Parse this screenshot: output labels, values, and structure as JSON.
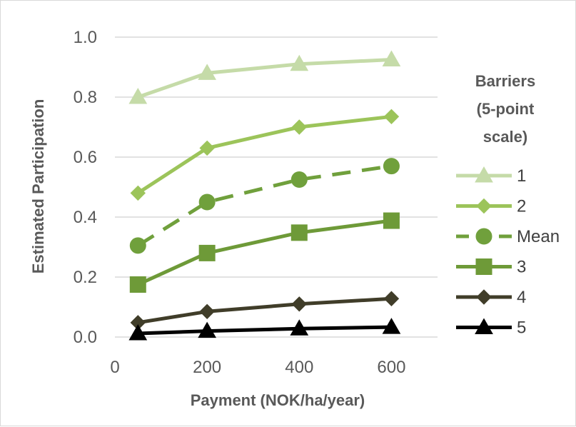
{
  "chart_data": {
    "type": "line",
    "xlabel": "Payment (NOK/ha/year)",
    "ylabel": "Estimated Participation",
    "xlim": [
      0,
      700
    ],
    "ylim": [
      0,
      1.0
    ],
    "x_ticks": [
      0,
      200,
      400,
      600
    ],
    "x_tick_labels": [
      "0",
      "200",
      "400",
      "600"
    ],
    "y_ticks": [
      0,
      0.2,
      0.4,
      0.6,
      0.8,
      1.0
    ],
    "y_tick_labels": [
      "0.0",
      "0.2",
      "0.4",
      "0.6",
      "0.8",
      "1.0"
    ],
    "grid": "horizontal",
    "legend_title": [
      "Barriers",
      "(5-point",
      "scale)"
    ],
    "legend_placement": "right",
    "x": [
      50,
      200,
      400,
      600
    ],
    "series": [
      {
        "name": "1",
        "values": [
          0.8,
          0.88,
          0.91,
          0.925
        ],
        "color": "#c5dba8",
        "marker": "triangle",
        "dash": false
      },
      {
        "name": "2",
        "values": [
          0.48,
          0.63,
          0.7,
          0.735
        ],
        "color": "#9cc45a",
        "marker": "diamond",
        "dash": false
      },
      {
        "name": "Mean",
        "values": [
          0.305,
          0.45,
          0.525,
          0.57
        ],
        "color": "#70a03c",
        "marker": "circle",
        "dash": true
      },
      {
        "name": "3",
        "values": [
          0.175,
          0.28,
          0.348,
          0.388
        ],
        "color": "#6e9a38",
        "marker": "square",
        "dash": false
      },
      {
        "name": "4",
        "values": [
          0.048,
          0.085,
          0.11,
          0.128
        ],
        "color": "#403d29",
        "marker": "diamond",
        "dash": false
      },
      {
        "name": "5",
        "values": [
          0.012,
          0.02,
          0.028,
          0.033
        ],
        "color": "#000000",
        "marker": "triangle",
        "dash": false
      }
    ]
  }
}
